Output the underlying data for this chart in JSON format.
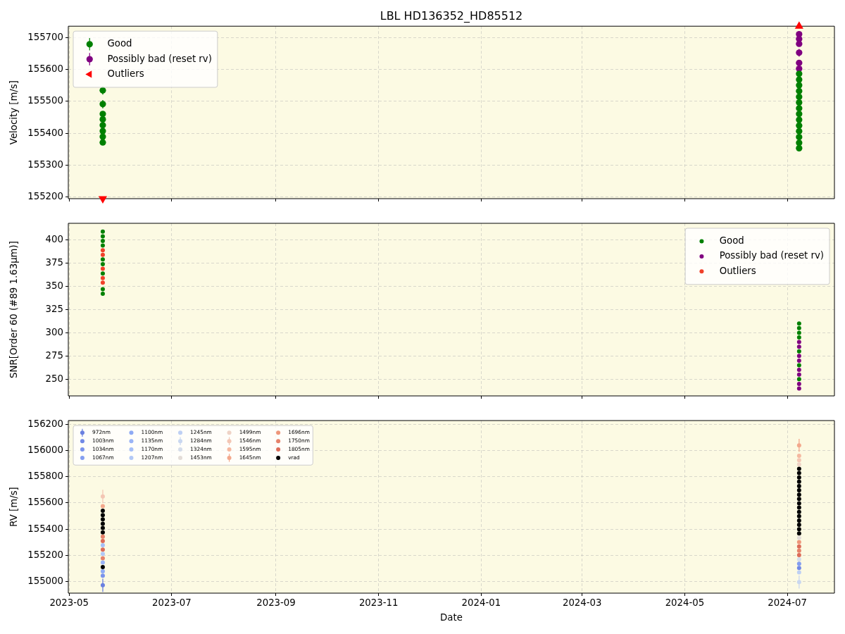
{
  "chart_data": [
    {
      "type": "scatter",
      "title": "LBL HD136352_HD85512",
      "ylabel": "Velocity [m/s]",
      "xlim": [
        "2023-04-30T12:00",
        "2024-07-29"
      ],
      "xticks": [
        "2023-05",
        "2023-07",
        "2023-09",
        "2023-11",
        "2024-01",
        "2024-03",
        "2024-05",
        "2024-07"
      ],
      "ylim": [
        155195,
        155735
      ],
      "yticks": [
        155200,
        155300,
        155400,
        155500,
        155600,
        155700
      ],
      "grid": true,
      "legend": "top left",
      "marker": "circle",
      "tick_labels": "y",
      "series": [
        {
          "name": "Good",
          "color": "#008000",
          "x": [
            "2023-05-21",
            "2023-05-21",
            "2023-05-21",
            "2023-05-21",
            "2023-05-21",
            "2023-05-21",
            "2023-05-21",
            "2023-05-21",
            "2024-07-08",
            "2024-07-08",
            "2024-07-08",
            "2024-07-08",
            "2024-07-08",
            "2024-07-08",
            "2024-07-08",
            "2024-07-08",
            "2024-07-08",
            "2024-07-08",
            "2024-07-08",
            "2024-07-08",
            "2024-07-08",
            "2024-07-08"
          ],
          "values": [
            155534,
            155491,
            155460,
            155443,
            155425,
            155407,
            155389,
            155371,
            155586,
            155568,
            155550,
            155532,
            155514,
            155496,
            155478,
            155460,
            155442,
            155424,
            155406,
            155388,
            155370,
            155353
          ],
          "errors": [
            13,
            13,
            null,
            null,
            null,
            null,
            null,
            null,
            null,
            null,
            null,
            null,
            null,
            null,
            null,
            null,
            null,
            null,
            null,
            null,
            null,
            null
          ]
        },
        {
          "name": "Possibly bad (reset rv)",
          "color": "#800080",
          "x": [
            "2024-07-08",
            "2024-07-08",
            "2024-07-08",
            "2024-07-08",
            "2024-07-08",
            "2024-07-08"
          ],
          "values": [
            155710,
            155695,
            155680,
            155652,
            155620,
            155602
          ],
          "errors": [
            null,
            null,
            null,
            12,
            null,
            null
          ]
        },
        {
          "name": "Outliers",
          "color": "#ff0000",
          "marker": "triangle",
          "x": [
            "2023-05-21",
            "2024-07-08"
          ],
          "values": [
            155195,
            155735
          ]
        }
      ]
    },
    {
      "type": "scatter",
      "ylabel": "SNR[Order 60 (#89 1.63μm)]",
      "xlim": [
        "2023-04-30T12:00",
        "2024-07-29"
      ],
      "xticks": [
        "2023-05",
        "2023-07",
        "2023-09",
        "2023-11",
        "2024-01",
        "2024-03",
        "2024-05",
        "2024-07"
      ],
      "ylim": [
        232,
        418
      ],
      "yticks": [
        250,
        275,
        300,
        325,
        350,
        375,
        400
      ],
      "grid": true,
      "legend": "top right",
      "marker": "circle",
      "tick_labels": "y",
      "series": [
        {
          "name": "Good",
          "color": "#008000",
          "x": [
            "2023-05-21",
            "2023-05-21",
            "2023-05-21",
            "2023-05-21",
            "2023-05-21",
            "2023-05-21",
            "2023-05-21",
            "2023-05-21",
            "2023-05-21",
            "2024-07-08",
            "2024-07-08",
            "2024-07-08",
            "2024-07-08",
            "2024-07-08",
            "2024-07-08",
            "2024-07-08"
          ],
          "values": [
            409,
            404,
            399,
            394,
            379,
            374,
            364,
            347,
            342,
            310,
            305,
            300,
            295,
            280,
            265,
            250
          ]
        },
        {
          "name": "Possibly bad (reset rv)",
          "color": "#800080",
          "x": [
            "2024-07-08",
            "2024-07-08",
            "2024-07-08",
            "2024-07-08",
            "2024-07-08",
            "2024-07-08",
            "2024-07-08",
            "2024-07-08"
          ],
          "values": [
            290,
            285,
            275,
            270,
            260,
            255,
            245,
            240
          ]
        },
        {
          "name": "Outliers",
          "color": "#f0402a",
          "x": [
            "2023-05-21",
            "2023-05-21",
            "2023-05-21",
            "2023-05-21",
            "2023-05-21"
          ],
          "values": [
            389,
            384,
            369,
            359,
            354
          ]
        }
      ]
    },
    {
      "type": "scatter",
      "ylabel": "RV [m/s]",
      "xlabel": "Date",
      "xlim": [
        "2023-04-30T12:00",
        "2024-07-29"
      ],
      "xticks": [
        "2023-05",
        "2023-07",
        "2023-09",
        "2023-11",
        "2024-01",
        "2024-03",
        "2024-05",
        "2024-07"
      ],
      "ylim": [
        154910,
        156230
      ],
      "yticks": [
        155000,
        155200,
        155400,
        155600,
        155800,
        156000,
        156200
      ],
      "grid": true,
      "legend": "top left",
      "marker": "circle",
      "series": [
        {
          "name": "972nm",
          "color": "#6a80e0",
          "x": [
            "2023-05-21"
          ],
          "values": [
            154970
          ],
          "errors": [
            50
          ]
        },
        {
          "name": "1003nm",
          "color": "#7189e6",
          "x": [
            "2024-07-08"
          ],
          "values": [
            155102
          ]
        },
        {
          "name": "1034nm",
          "color": "#7a93ec",
          "x": [
            "2023-05-21"
          ],
          "values": [
            155044
          ]
        },
        {
          "name": "1067nm",
          "color": "#849ef0",
          "x": [
            "2024-07-08"
          ],
          "values": [
            155135
          ]
        },
        {
          "name": "1100nm",
          "color": "#8eaaf4",
          "x": [
            "2023-05-21"
          ],
          "values": [
            155077
          ]
        },
        {
          "name": "1135nm",
          "color": "#9ab4f6",
          "x": [
            "2023-05-21"
          ],
          "values": [
            155144
          ]
        },
        {
          "name": "1170nm",
          "color": "#a6bff7",
          "x": [
            "2023-05-21"
          ],
          "values": [
            155276
          ]
        },
        {
          "name": "1207nm",
          "color": "#b2c8f6",
          "x": [
            "2023-05-21"
          ],
          "values": [
            155210
          ]
        },
        {
          "name": "1245nm",
          "color": "#bed0f4",
          "x": [
            "2024-07-08"
          ],
          "values": [
            155069
          ]
        },
        {
          "name": "1284nm",
          "color": "#c9d7f0",
          "x": [
            "2024-07-08"
          ],
          "values": [
            154995
          ],
          "errors": [
            50
          ]
        },
        {
          "name": "1324nm",
          "color": "#d4dcea",
          "x": [
            "2024-07-08"
          ],
          "values": [
            155168
          ]
        },
        {
          "name": "1453nm",
          "color": "#e3dcd7",
          "x": [
            "2024-07-08"
          ],
          "values": [
            155333
          ]
        },
        {
          "name": "1499nm",
          "color": "#efd3c6",
          "x": [
            "2024-07-08"
          ],
          "values": [
            155894
          ]
        },
        {
          "name": "1546nm",
          "color": "#f3c6b4",
          "x": [
            "2023-05-21",
            "2024-07-08"
          ],
          "values": [
            155650,
            155927
          ],
          "errors": [
            50,
            null
          ]
        },
        {
          "name": "1595nm",
          "color": "#f5b8a0",
          "x": [
            "2024-07-08"
          ],
          "values": [
            155960
          ]
        },
        {
          "name": "1645nm",
          "color": "#f3a88c",
          "x": [
            "2023-05-21",
            "2024-07-08"
          ],
          "values": [
            155575,
            156040
          ],
          "errors": [
            null,
            50
          ]
        },
        {
          "name": "1696nm",
          "color": "#ee967a",
          "x": [
            "2024-07-08"
          ],
          "values": [
            155300
          ]
        },
        {
          "name": "1750nm",
          "color": "#e6826a",
          "x": [
            "2023-05-21",
            "2023-05-21",
            "2024-07-08"
          ],
          "values": [
            155342,
            155177,
            155234
          ]
        },
        {
          "name": "1805nm",
          "color": "#dc6c59",
          "x": [
            "2023-05-21",
            "2023-05-21",
            "2024-07-08",
            "2024-07-08"
          ],
          "values": [
            155309,
            155243,
            155267,
            155201
          ]
        },
        {
          "name": "vrad",
          "color": "#000000",
          "x": [
            "2023-05-21",
            "2023-05-21",
            "2023-05-21",
            "2023-05-21",
            "2023-05-21",
            "2023-05-21",
            "2023-05-21",
            "2024-07-08",
            "2024-07-08",
            "2024-07-08",
            "2024-07-08",
            "2024-07-08",
            "2024-07-08",
            "2024-07-08",
            "2024-07-08",
            "2024-07-08",
            "2024-07-08",
            "2024-07-08",
            "2024-07-08",
            "2024-07-08",
            "2024-07-08",
            "2024-07-08",
            "2024-07-08"
          ],
          "values": [
            155540,
            155507,
            155474,
            155441,
            155408,
            155375,
            155110,
            155861,
            155828,
            155795,
            155762,
            155729,
            155696,
            155663,
            155630,
            155597,
            155564,
            155531,
            155498,
            155465,
            155432,
            155399,
            155366
          ]
        }
      ]
    }
  ]
}
